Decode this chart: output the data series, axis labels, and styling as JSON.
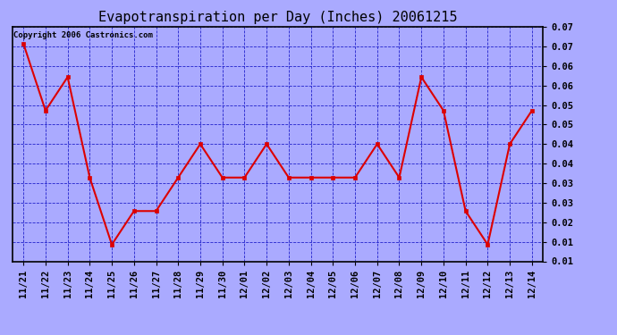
{
  "title": "Evapotranspiration per Day (Inches) 20061215",
  "copyright_text": "Copyright 2006 Castronics.com",
  "dates": [
    "11/21",
    "11/22",
    "11/23",
    "11/24",
    "11/25",
    "11/26",
    "11/27",
    "11/28",
    "11/29",
    "11/30",
    "12/01",
    "12/02",
    "12/03",
    "12/04",
    "12/05",
    "12/06",
    "12/07",
    "12/08",
    "12/09",
    "12/10",
    "12/11",
    "12/12",
    "12/13",
    "12/14"
  ],
  "values": [
    0.07,
    0.05,
    0.06,
    0.03,
    0.01,
    0.02,
    0.02,
    0.03,
    0.04,
    0.03,
    0.03,
    0.04,
    0.03,
    0.03,
    0.03,
    0.03,
    0.04,
    0.03,
    0.06,
    0.05,
    0.02,
    0.01,
    0.04,
    0.05
  ],
  "line_color": "#dd0000",
  "marker_color": "#dd0000",
  "marker_style": "s",
  "marker_size": 3,
  "bg_color": "#aaaaff",
  "plot_bg_color": "#aaaaff",
  "grid_color": "#2222cc",
  "ylim_min": 0.005,
  "ylim_max": 0.075,
  "title_fontsize": 11,
  "tick_fontsize": 7.5,
  "copyright_fontsize": 6.5,
  "linewidth": 1.5
}
